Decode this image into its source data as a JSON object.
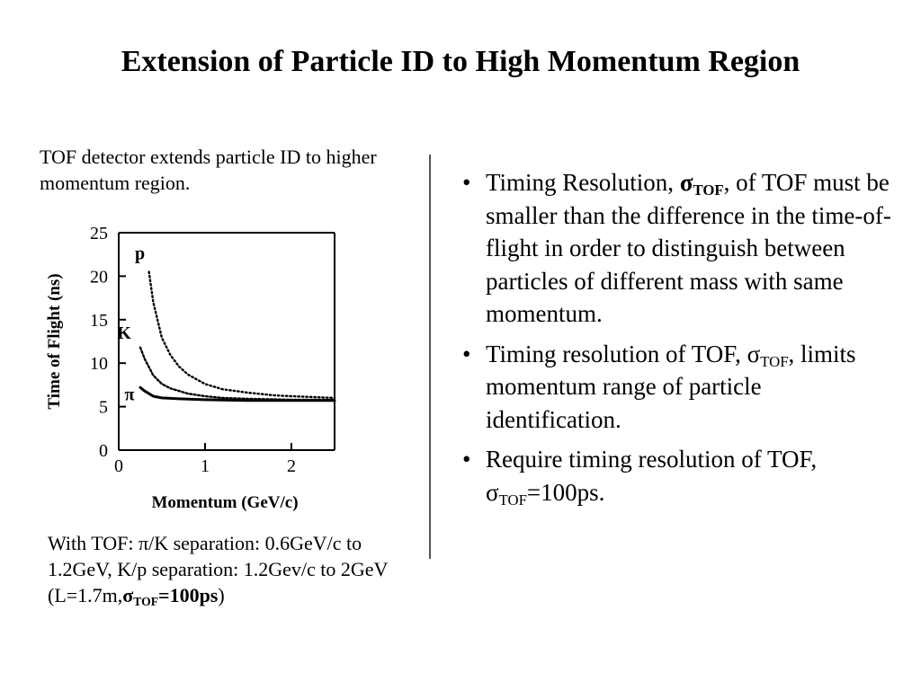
{
  "slide": {
    "title": "Extension of Particle ID to High Momentum Region",
    "intro": "TOF detector extends particle ID to higher momentum region.",
    "bullets": [
      {
        "pre": "Timing Resolution, ",
        "sym": "σ",
        "sub": "TOF",
        "post": ", of TOF  must be smaller than the difference in the time-of-flight in order to distinguish between particles of different mass with same momentum."
      },
      {
        "pre": "Timing resolution of TOF, ",
        "sym": "σ",
        "sub": "TOF",
        "post": ", limits momentum range of particle identification."
      },
      {
        "pre": "Require timing resolution of TOF, ",
        "sym": "σ",
        "sub": "TOF",
        "post": "=100ps."
      }
    ],
    "note": {
      "pre": "With TOF: ",
      "pi": "π",
      "mid": "/K separation: 0.6GeV/c to 1.2GeV,  K/p separation: 1.2Gev/c to 2GeV (L=1.7m,",
      "sym": "σ",
      "sub": "TOF",
      "val": "=100ps",
      "close": ")"
    }
  },
  "chart_data": {
    "type": "line",
    "xlabel": "Momentum (GeV/c)",
    "ylabel": "Time of Flight (ns)",
    "xlim": [
      0,
      2.5
    ],
    "ylim": [
      0,
      25
    ],
    "xticks": [
      "0",
      "1",
      "2"
    ],
    "yticks": [
      "0",
      "5",
      "10",
      "15",
      "20",
      "25"
    ],
    "grid": false,
    "series": [
      {
        "name": "p",
        "x": [
          0.35,
          0.4,
          0.5,
          0.6,
          0.7,
          0.8,
          1.0,
          1.2,
          1.5,
          1.8,
          2.0,
          2.5
        ],
        "y": [
          20.5,
          17.0,
          12.9,
          10.9,
          9.6,
          8.7,
          7.6,
          7.0,
          6.6,
          6.3,
          6.2,
          6.0
        ]
      },
      {
        "name": "K",
        "x": [
          0.25,
          0.3,
          0.4,
          0.5,
          0.6,
          0.8,
          1.0,
          1.2,
          1.5,
          2.0,
          2.5
        ],
        "y": [
          11.8,
          10.5,
          8.6,
          7.6,
          7.1,
          6.5,
          6.2,
          6.0,
          5.9,
          5.8,
          5.8
        ]
      },
      {
        "name": "π",
        "x": [
          0.25,
          0.3,
          0.4,
          0.5,
          0.7,
          1.0,
          1.5,
          2.0,
          2.5
        ],
        "y": [
          7.2,
          6.8,
          6.2,
          6.0,
          5.9,
          5.8,
          5.7,
          5.7,
          5.7
        ]
      }
    ]
  }
}
